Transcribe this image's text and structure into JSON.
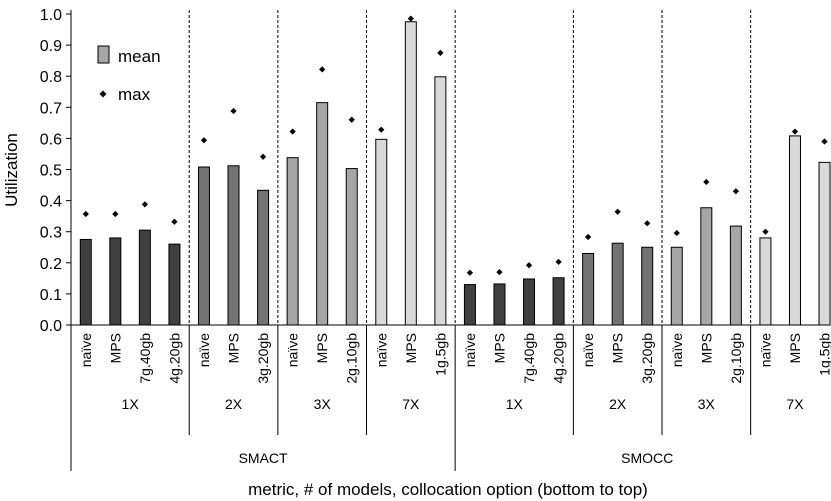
{
  "chart_data": {
    "type": "bar",
    "ylabel": "Utilization",
    "xlabel": "metric, # of models, collocation option (bottom to top)",
    "ylim": [
      0,
      1.0
    ],
    "yticks": [
      "0.0",
      "0.1",
      "0.2",
      "0.3",
      "0.4",
      "0.5",
      "0.6",
      "0.7",
      "0.8",
      "0.9",
      "1.0"
    ],
    "legend": {
      "position": "top-left",
      "entries": [
        {
          "name": "mean",
          "marker": "bar"
        },
        {
          "name": "max",
          "marker": "diamond"
        }
      ]
    },
    "colors": {
      "1X": "#404040",
      "2X": "#737373",
      "3X": "#a6a6a6",
      "7X": "#d9d9d9",
      "outline": "#000000",
      "max_marker": "#000000"
    },
    "metrics": [
      {
        "name": "SMACT",
        "groups": [
          {
            "label": "1X",
            "bars": [
              {
                "option": "naïve",
                "mean": 0.275,
                "max": 0.357
              },
              {
                "option": "MPS",
                "mean": 0.28,
                "max": 0.357
              },
              {
                "option": "7g.40gb",
                "mean": 0.305,
                "max": 0.388
              },
              {
                "option": "4g.20gb",
                "mean": 0.26,
                "max": 0.332
              }
            ]
          },
          {
            "label": "2X",
            "bars": [
              {
                "option": "naïve",
                "mean": 0.508,
                "max": 0.594
              },
              {
                "option": "MPS",
                "mean": 0.512,
                "max": 0.688
              },
              {
                "option": "3g.20gb",
                "mean": 0.433,
                "max": 0.541
              }
            ]
          },
          {
            "label": "3X",
            "bars": [
              {
                "option": "naïve",
                "mean": 0.538,
                "max": 0.622
              },
              {
                "option": "MPS",
                "mean": 0.715,
                "max": 0.822
              },
              {
                "option": "2g.10gb",
                "mean": 0.503,
                "max": 0.66
              }
            ]
          },
          {
            "label": "7X",
            "bars": [
              {
                "option": "naïve",
                "mean": 0.597,
                "max": 0.628
              },
              {
                "option": "MPS",
                "mean": 0.975,
                "max": 0.985
              },
              {
                "option": "1g.5gb",
                "mean": 0.798,
                "max": 0.875
              }
            ]
          }
        ]
      },
      {
        "name": "SMOCC",
        "groups": [
          {
            "label": "1X",
            "bars": [
              {
                "option": "naïve",
                "mean": 0.13,
                "max": 0.168
              },
              {
                "option": "MPS",
                "mean": 0.132,
                "max": 0.17
              },
              {
                "option": "7g.40gb",
                "mean": 0.148,
                "max": 0.192
              },
              {
                "option": "4g.20gb",
                "mean": 0.152,
                "max": 0.203
              }
            ]
          },
          {
            "label": "2X",
            "bars": [
              {
                "option": "naïve",
                "mean": 0.23,
                "max": 0.283
              },
              {
                "option": "MPS",
                "mean": 0.263,
                "max": 0.364
              },
              {
                "option": "3g.20gb",
                "mean": 0.25,
                "max": 0.327
              }
            ]
          },
          {
            "label": "3X",
            "bars": [
              {
                "option": "naïve",
                "mean": 0.25,
                "max": 0.296
              },
              {
                "option": "MPS",
                "mean": 0.377,
                "max": 0.46
              },
              {
                "option": "2g.10gb",
                "mean": 0.318,
                "max": 0.43
              }
            ]
          },
          {
            "label": "7X",
            "bars": [
              {
                "option": "naïve",
                "mean": 0.28,
                "max": 0.3
              },
              {
                "option": "MPS",
                "mean": 0.608,
                "max": 0.622
              },
              {
                "option": "1g.5gb",
                "mean": 0.523,
                "max": 0.59
              }
            ]
          }
        ]
      }
    ]
  }
}
